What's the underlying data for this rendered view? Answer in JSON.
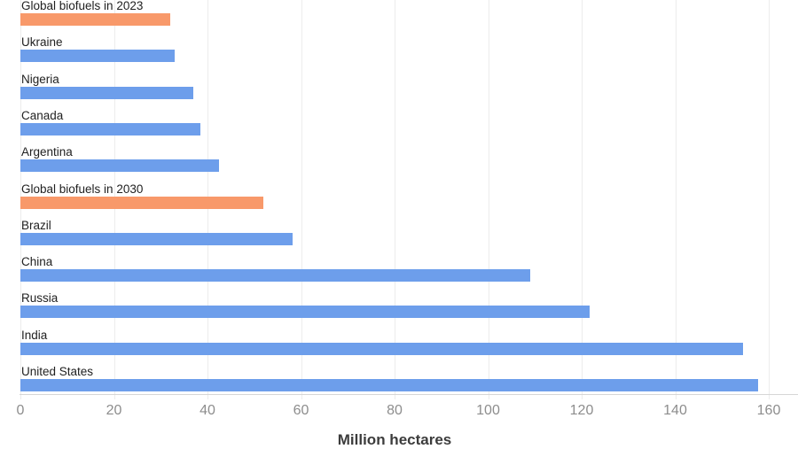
{
  "chart_data": {
    "type": "bar",
    "orientation": "horizontal",
    "title": "",
    "xlabel": "Million hectares",
    "ylabel": "",
    "categories": [
      "Global biofuels in 2023",
      "Ukraine",
      "Nigeria",
      "Canada",
      "Argentina",
      "Global biofuels in 2030",
      "Brazil",
      "China",
      "Russia",
      "India",
      "United States"
    ],
    "values": [
      32,
      33,
      36.9,
      38.4,
      42.4,
      52,
      58.2,
      109,
      121.7,
      154.5,
      157.7
    ],
    "bar_colors": [
      "#f8996a",
      "#6d9eeb",
      "#6d9eeb",
      "#6d9eeb",
      "#6d9eeb",
      "#f8996a",
      "#6d9eeb",
      "#6d9eeb",
      "#6d9eeb",
      "#6d9eeb",
      "#6d9eeb"
    ],
    "xlim": [
      0,
      160
    ],
    "xticks": [
      0,
      20,
      40,
      60,
      80,
      100,
      120,
      140,
      160
    ],
    "grid": "vertical",
    "legend": "none",
    "colors": {
      "country_bar": "#6d9eeb",
      "biofuel_bar": "#f8996a",
      "gridline": "#ececec",
      "axis_line": "#d6d6d6",
      "tick_text": "#8d8d8d",
      "category_text": "#212121",
      "axis_title_text": "#3c3c3c"
    }
  }
}
